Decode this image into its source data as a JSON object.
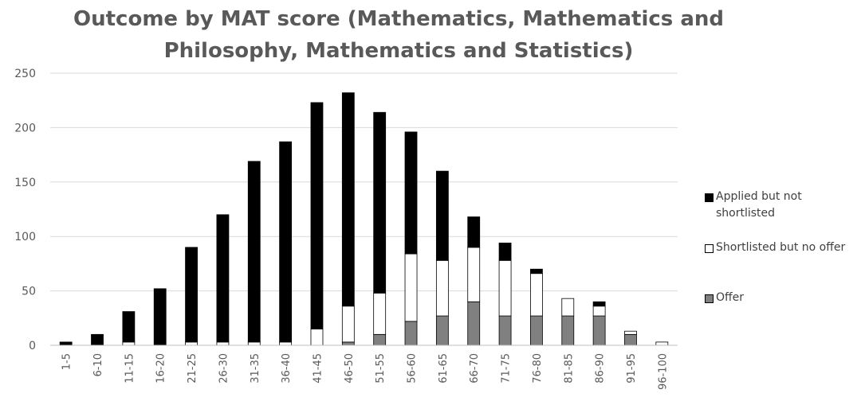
{
  "chart_data": {
    "type": "bar",
    "stacked": true,
    "title": "Outcome by MAT score (Mathematics, Mathematics and Philosophy, Mathematics and Statistics)",
    "title_lines": [
      "Outcome by MAT score (Mathematics, Mathematics and",
      "Philosophy, Mathematics and Statistics)"
    ],
    "categories": [
      "1-5",
      "6-10",
      "11-15",
      "16-20",
      "21-25",
      "26-30",
      "31-35",
      "36-40",
      "41-45",
      "46-50",
      "51-55",
      "56-60",
      "61-65",
      "66-70",
      "71-75",
      "76-80",
      "81-85",
      "86-90",
      "91-95",
      "96-100"
    ],
    "series": [
      {
        "name": "Offer",
        "color": "#808080",
        "values": [
          0,
          0,
          0,
          0,
          0,
          0,
          0,
          0,
          0,
          3,
          10,
          22,
          27,
          40,
          27,
          27,
          27,
          27,
          10,
          0
        ]
      },
      {
        "name": "Shortlisted but no offer",
        "color": "#ffffff",
        "values": [
          0,
          0,
          3,
          0,
          3,
          3,
          3,
          3,
          15,
          33,
          38,
          62,
          51,
          50,
          51,
          39,
          16,
          9,
          3,
          3
        ]
      },
      {
        "name": "Applied but not shortlisted",
        "color": "#000000",
        "values": [
          3,
          10,
          28,
          52,
          87,
          117,
          166,
          184,
          208,
          196,
          166,
          112,
          82,
          28,
          16,
          4,
          0,
          4,
          0,
          0
        ]
      }
    ],
    "legend_entries": [
      {
        "lines": [
          "Applied but not",
          "shortlisted"
        ],
        "color": "#000000"
      },
      {
        "lines": [
          "Shortlisted but no offer"
        ],
        "color": "#ffffff"
      },
      {
        "lines": [
          "Offer"
        ],
        "color": "#808080"
      }
    ],
    "ylim": [
      0,
      250
    ],
    "yticks": [
      0,
      50,
      100,
      150,
      200,
      250
    ],
    "grid": true,
    "legend_position": "right",
    "xlabel": "",
    "ylabel": ""
  }
}
